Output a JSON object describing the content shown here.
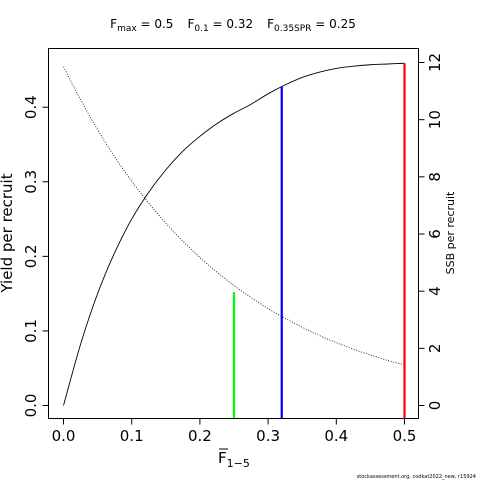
{
  "chart_data": {
    "type": "line",
    "title": {
      "fmax": {
        "main": "F",
        "sub": "max",
        "value": " = 0.5"
      },
      "f01": {
        "main": "F",
        "sub": "0.1",
        "value": " = 0.32"
      },
      "f35": {
        "main": "F",
        "sub": "0.35SPR",
        "value": " = 0.25"
      }
    },
    "xlabel": {
      "main": "F",
      "sub": "1−5"
    },
    "ylabel": "Yield per recruit",
    "y2label": "SSB per recruit",
    "xlim": [
      0,
      0.5
    ],
    "ylim": [
      0,
      0.46
    ],
    "y2lim": [
      0,
      12
    ],
    "x_ticks": [
      0.0,
      0.1,
      0.2,
      0.3,
      0.4,
      0.5
    ],
    "x_tick_labels": [
      "0.0",
      "0.1",
      "0.2",
      "0.3",
      "0.4",
      "0.5"
    ],
    "y_ticks": [
      0.0,
      0.1,
      0.2,
      0.3,
      0.4
    ],
    "y_tick_labels": [
      "0.0",
      "0.1",
      "0.2",
      "0.3",
      "0.4"
    ],
    "y2_ticks": [
      0,
      2,
      4,
      6,
      8,
      10,
      12
    ],
    "y2_tick_labels": [
      "0",
      "2",
      "4",
      "6",
      "8",
      "10",
      "12"
    ],
    "series": [
      {
        "axis": "left",
        "style": "solid",
        "color": "#000000",
        "x": [
          0,
          0.025,
          0.05,
          0.075,
          0.1,
          0.125,
          0.15,
          0.175,
          0.2,
          0.225,
          0.25,
          0.275,
          0.3,
          0.325,
          0.35,
          0.375,
          0.4,
          0.425,
          0.45,
          0.475,
          0.5
        ],
        "y": [
          0.0,
          0.082,
          0.15,
          0.205,
          0.25,
          0.286,
          0.316,
          0.341,
          0.361,
          0.378,
          0.392,
          0.404,
          0.418,
          0.43,
          0.44,
          0.447,
          0.452,
          0.455,
          0.457,
          0.458,
          0.459
        ]
      },
      {
        "axis": "right",
        "style": "dotted",
        "color": "#000000",
        "x": [
          0,
          0.025,
          0.05,
          0.075,
          0.1,
          0.125,
          0.15,
          0.175,
          0.2,
          0.225,
          0.25,
          0.275,
          0.3,
          0.325,
          0.35,
          0.375,
          0.4,
          0.425,
          0.45,
          0.475,
          0.5
        ],
        "y": [
          11.85,
          10.7,
          9.65,
          8.7,
          7.85,
          7.08,
          6.38,
          5.75,
          5.18,
          4.67,
          4.2,
          3.78,
          3.39,
          3.05,
          2.74,
          2.45,
          2.2,
          1.97,
          1.77,
          1.58,
          1.42
        ]
      }
    ],
    "reference_lines": [
      {
        "name": "F0.35SPR",
        "x": 0.25,
        "y_top": 0.152,
        "color": "#00ff00"
      },
      {
        "name": "F0.1",
        "x": 0.32,
        "y_top": 0.428,
        "color": "#0000ff"
      },
      {
        "name": "Fmax",
        "x": 0.5,
        "y_top": 0.459,
        "color": "#ff0000"
      }
    ],
    "footnote": "stockassessment.org, codkat2022_new, r15924"
  }
}
